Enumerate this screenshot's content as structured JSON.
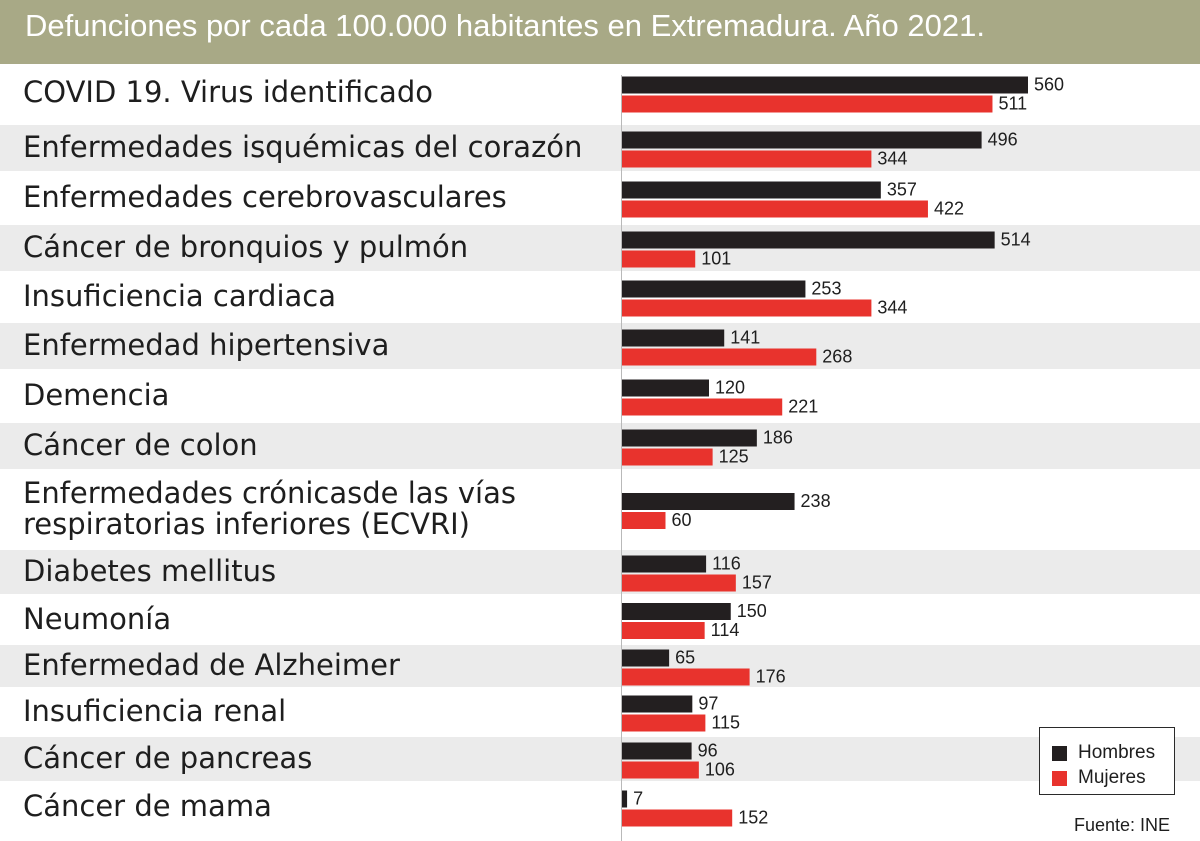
{
  "chart_data": {
    "type": "bar",
    "orientation": "horizontal",
    "title": "Defunciones por cada 100.000 habitantes en Extremadura. Año 2021.",
    "categories": [
      "COVID 19.  Virus identificado",
      "Enfermedades isquémicas del corazón",
      "Enfermedades cerebrovasculares",
      "Cáncer de bronquios y pulmón",
      "Insuficiencia cardiaca",
      "Enfermedad hipertensiva",
      "Demencia",
      "Cáncer de colon",
      "Enfermedades crónicasde las vías\nrespiratorias inferiores (ECVRI)",
      "Diabetes mellitus",
      "Neumonía",
      "Enfermedad de Alzheimer",
      "Insuficiencia renal",
      "Cáncer de pancreas",
      "Cáncer de mama"
    ],
    "series": [
      {
        "name": "Hombres",
        "color": "#231f20",
        "values": [
          560,
          496,
          357,
          514,
          253,
          141,
          120,
          186,
          238,
          116,
          150,
          65,
          97,
          96,
          7
        ]
      },
      {
        "name": "Mujeres",
        "color": "#e8332d",
        "values": [
          511,
          344,
          422,
          101,
          344,
          268,
          221,
          125,
          60,
          157,
          114,
          176,
          115,
          106,
          152
        ]
      }
    ],
    "xlim": [
      0,
      560
    ],
    "grid": false,
    "legend_position": "bottom-right",
    "source": "Fuente: INE",
    "band_color": "#ebebeb"
  },
  "colors": {
    "header": "#a8a986",
    "header_text": "#ffffff",
    "text": "#1e1e1e"
  }
}
